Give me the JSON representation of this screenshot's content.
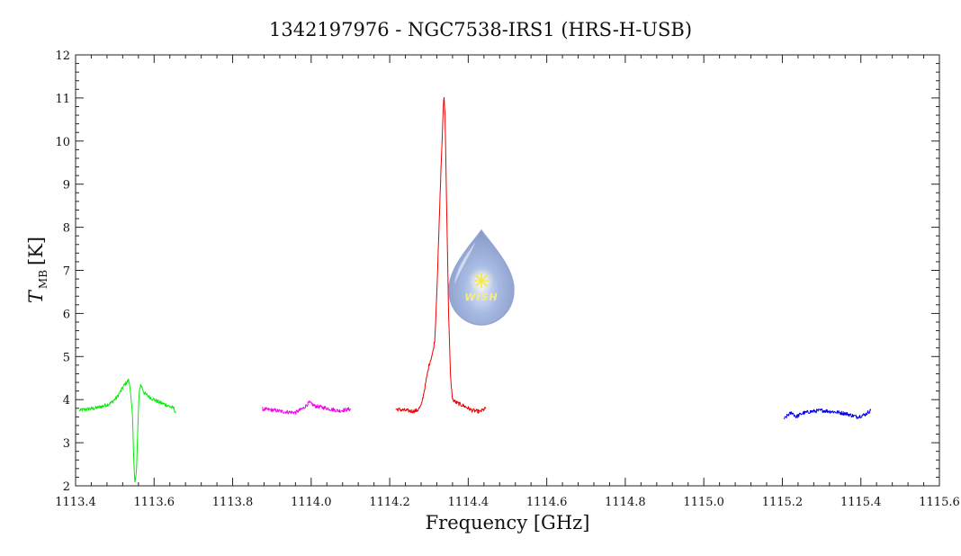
{
  "chart_data": {
    "type": "line",
    "title": "1342197976 - NGC7538-IRS1 (HRS-H-USB)",
    "xlabel": "Frequency [GHz]",
    "ylabel": {
      "symbol": "T",
      "subscript": "MB",
      "unit": "[K]"
    },
    "xlim": [
      1113.4,
      1115.6
    ],
    "ylim": [
      2,
      12
    ],
    "x_ticks": [
      1113.4,
      1113.6,
      1113.8,
      1114.0,
      1114.2,
      1114.4,
      1114.6,
      1114.8,
      1115.0,
      1115.2,
      1115.4,
      1115.6
    ],
    "x_tick_labels": [
      "1113.4",
      "1113.6",
      "1113.8",
      "1114.0",
      "1114.2",
      "1114.4",
      "1114.6",
      "1114.8",
      "1115.0",
      "1115.2",
      "1115.4",
      "1115.6"
    ],
    "y_ticks": [
      2,
      3,
      4,
      5,
      6,
      7,
      8,
      9,
      10,
      11,
      12
    ],
    "y_tick_labels": [
      "2",
      "3",
      "4",
      "5",
      "6",
      "7",
      "8",
      "9",
      "10",
      "11",
      "12"
    ],
    "grid": false,
    "legend": "none",
    "series": [
      {
        "color": "#00ee00",
        "points": [
          [
            1113.41,
            3.75
          ],
          [
            1113.43,
            3.78
          ],
          [
            1113.45,
            3.8
          ],
          [
            1113.47,
            3.85
          ],
          [
            1113.49,
            3.92
          ],
          [
            1113.505,
            4.05
          ],
          [
            1113.515,
            4.2
          ],
          [
            1113.525,
            4.35
          ],
          [
            1113.535,
            4.45
          ],
          [
            1113.54,
            4.2
          ],
          [
            1113.545,
            3.6
          ],
          [
            1113.548,
            2.6
          ],
          [
            1113.551,
            2.1
          ],
          [
            1113.555,
            2.3
          ],
          [
            1113.558,
            3.2
          ],
          [
            1113.562,
            4.2
          ],
          [
            1113.566,
            4.35
          ],
          [
            1113.575,
            4.15
          ],
          [
            1113.59,
            4.05
          ],
          [
            1113.61,
            3.95
          ],
          [
            1113.63,
            3.88
          ],
          [
            1113.65,
            3.8
          ],
          [
            1113.655,
            3.7
          ]
        ]
      },
      {
        "color": "#ee00ee",
        "points": [
          [
            1113.875,
            3.78
          ],
          [
            1113.9,
            3.76
          ],
          [
            1113.93,
            3.72
          ],
          [
            1113.96,
            3.7
          ],
          [
            1113.98,
            3.8
          ],
          [
            1113.995,
            3.93
          ],
          [
            1114.01,
            3.85
          ],
          [
            1114.04,
            3.8
          ],
          [
            1114.07,
            3.74
          ],
          [
            1114.1,
            3.78
          ]
        ]
      },
      {
        "color": "#ee0000",
        "points": [
          [
            1114.215,
            3.78
          ],
          [
            1114.24,
            3.75
          ],
          [
            1114.26,
            3.73
          ],
          [
            1114.27,
            3.75
          ],
          [
            1114.28,
            3.85
          ],
          [
            1114.29,
            4.3
          ],
          [
            1114.3,
            4.8
          ],
          [
            1114.31,
            5.1
          ],
          [
            1114.315,
            5.4
          ],
          [
            1114.32,
            6.5
          ],
          [
            1114.325,
            7.8
          ],
          [
            1114.33,
            9.2
          ],
          [
            1114.335,
            10.4
          ],
          [
            1114.338,
            11.1
          ],
          [
            1114.341,
            10.6
          ],
          [
            1114.345,
            8.5
          ],
          [
            1114.35,
            6.0
          ],
          [
            1114.355,
            4.5
          ],
          [
            1114.36,
            4.0
          ],
          [
            1114.37,
            3.93
          ],
          [
            1114.39,
            3.85
          ],
          [
            1114.41,
            3.75
          ],
          [
            1114.43,
            3.72
          ],
          [
            1114.445,
            3.8
          ]
        ]
      },
      {
        "color": "#0000ee",
        "points": [
          [
            1115.205,
            3.55
          ],
          [
            1115.215,
            3.65
          ],
          [
            1115.225,
            3.7
          ],
          [
            1115.235,
            3.6
          ],
          [
            1115.25,
            3.68
          ],
          [
            1115.27,
            3.72
          ],
          [
            1115.3,
            3.75
          ],
          [
            1115.33,
            3.72
          ],
          [
            1115.36,
            3.68
          ],
          [
            1115.39,
            3.6
          ],
          [
            1115.41,
            3.65
          ],
          [
            1115.425,
            3.75
          ]
        ]
      }
    ]
  },
  "logo": {
    "text": "WISH"
  }
}
